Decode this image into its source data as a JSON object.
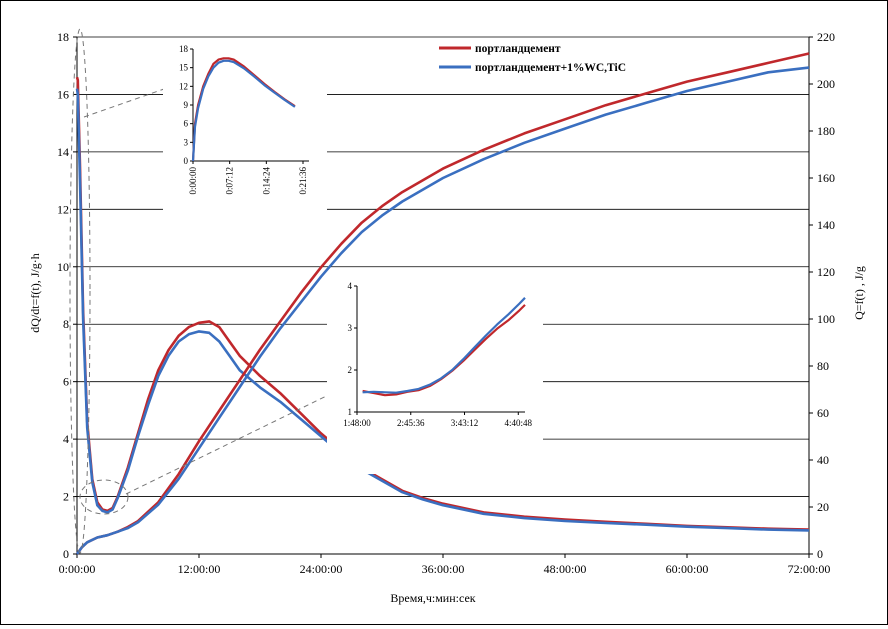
{
  "chart_data": {
    "type": "line",
    "title": "",
    "xlabel": "Время,ч:мин:сек",
    "ylabel_left": "dQ/dt=f(t), J/g·h",
    "ylabel_right": "Q=f(t) , J/g",
    "x_unit": "hours",
    "xlim": [
      0,
      72
    ],
    "x_ticks": [
      {
        "value": 0,
        "label": "0:00:00"
      },
      {
        "value": 12,
        "label": "12:00:00"
      },
      {
        "value": 24,
        "label": "24:00:00"
      },
      {
        "value": 36,
        "label": "36:00:00"
      },
      {
        "value": 48,
        "label": "48:00:00"
      },
      {
        "value": 60,
        "label": "60:00:00"
      },
      {
        "value": 72,
        "label": "72:00:00"
      }
    ],
    "ylim_left": [
      0,
      18
    ],
    "y_left_ticks": [
      "0",
      "2",
      "4",
      "6",
      "8",
      "10",
      "12",
      "14",
      "16",
      "18"
    ],
    "ylim_right": [
      0,
      220
    ],
    "y_right_ticks": [
      "0",
      "20",
      "40",
      "60",
      "80",
      "100",
      "120",
      "140",
      "160",
      "180",
      "200",
      "220"
    ],
    "gridlines": "horizontal",
    "legend_position": "top-right",
    "colors": {
      "red": "#c0282c",
      "blue": "#3a6fc0",
      "grid": "#000000",
      "dash": "#777777"
    },
    "series": [
      {
        "name": "портландцемент",
        "color": "#c0282c",
        "axis": "left",
        "kind": "rate",
        "x": [
          0,
          0.08,
          0.3,
          0.6,
          1,
          1.5,
          2,
          2.5,
          3,
          3.5,
          4,
          5,
          6,
          7,
          8,
          9,
          10,
          11,
          12,
          13,
          14,
          15,
          16,
          18,
          20,
          22,
          24,
          26,
          28,
          30,
          32,
          34,
          36,
          40,
          44,
          48,
          52,
          56,
          60,
          64,
          68,
          72
        ],
        "y": [
          16.6,
          16.5,
          13.5,
          8.5,
          4.6,
          2.6,
          1.8,
          1.55,
          1.5,
          1.6,
          2.0,
          3.0,
          4.2,
          5.4,
          6.4,
          7.1,
          7.6,
          7.9,
          8.05,
          8.1,
          7.9,
          7.4,
          6.9,
          6.2,
          5.6,
          4.9,
          4.2,
          3.6,
          3.0,
          2.6,
          2.2,
          1.95,
          1.75,
          1.45,
          1.3,
          1.2,
          1.12,
          1.05,
          0.98,
          0.93,
          0.88,
          0.85
        ]
      },
      {
        "name": "портландцемент+1%WC,TiC",
        "color": "#3a6fc0",
        "axis": "left",
        "kind": "rate",
        "x": [
          0,
          0.08,
          0.3,
          0.6,
          1,
          1.5,
          2,
          2.5,
          3,
          3.5,
          4,
          5,
          6,
          7,
          8,
          9,
          10,
          11,
          12,
          13,
          14,
          15,
          16,
          18,
          20,
          22,
          24,
          26,
          28,
          30,
          32,
          34,
          36,
          40,
          44,
          48,
          52,
          56,
          60,
          64,
          68,
          72
        ],
        "y": [
          16.2,
          16.0,
          13.0,
          8.2,
          4.4,
          2.5,
          1.7,
          1.5,
          1.45,
          1.55,
          1.95,
          2.9,
          4.1,
          5.2,
          6.2,
          6.9,
          7.4,
          7.65,
          7.75,
          7.7,
          7.4,
          6.9,
          6.4,
          5.8,
          5.3,
          4.7,
          4.1,
          3.5,
          2.95,
          2.55,
          2.15,
          1.9,
          1.7,
          1.4,
          1.25,
          1.15,
          1.08,
          1.02,
          0.95,
          0.9,
          0.85,
          0.82
        ]
      },
      {
        "name": "портландцемент",
        "color": "#c0282c",
        "axis": "right",
        "kind": "cumulative",
        "x": [
          0,
          0.5,
          1,
          2,
          3,
          4,
          5,
          6,
          8,
          10,
          12,
          14,
          16,
          18,
          20,
          22,
          24,
          26,
          28,
          30,
          32,
          36,
          40,
          44,
          48,
          52,
          56,
          60,
          64,
          68,
          72
        ],
        "y": [
          0,
          3,
          5,
          7,
          8,
          9.5,
          11.5,
          14,
          22,
          34,
          48,
          61,
          74,
          87,
          99,
          111,
          122,
          132,
          141,
          148,
          154,
          164,
          172,
          179,
          185,
          191,
          196,
          201,
          205,
          209,
          213
        ]
      },
      {
        "name": "портландцемент+1%WC,TiC",
        "color": "#3a6fc0",
        "axis": "right",
        "kind": "cumulative",
        "x": [
          0,
          0.5,
          1,
          2,
          3,
          4,
          5,
          6,
          8,
          10,
          12,
          14,
          16,
          18,
          20,
          22,
          24,
          26,
          28,
          30,
          32,
          36,
          40,
          44,
          48,
          52,
          56,
          60,
          64,
          68,
          72
        ],
        "y": [
          0,
          3,
          5,
          7,
          8,
          9.5,
          11,
          13.5,
          21,
          32,
          45,
          58,
          71,
          84,
          96,
          107,
          118,
          128,
          137,
          144,
          150,
          160,
          168,
          175,
          181,
          187,
          192,
          197,
          201,
          205,
          207
        ]
      }
    ],
    "insets": [
      {
        "id": "early",
        "x_ticks": [
          "0:00:00",
          "0:07:12",
          "0:14:24",
          "0:21:36"
        ],
        "xlim_min": [
          0,
          21.6
        ],
        "ylim": [
          0,
          18
        ],
        "y_ticks": [
          "0",
          "3",
          "6",
          "9",
          "12",
          "15",
          "18"
        ],
        "series": [
          {
            "name": "портландцемент",
            "color": "#c0282c",
            "x": [
              0,
              0.4,
              1,
              2,
              3,
              4,
              5,
              6,
              7,
              8,
              10,
              12,
              14,
              16,
              18,
              20
            ],
            "y": [
              0,
              6,
              9,
              12,
              14,
              15.6,
              16.3,
              16.5,
              16.5,
              16.3,
              15.2,
              13.8,
              12.4,
              11.1,
              9.9,
              8.8
            ]
          },
          {
            "name": "портландцемент+1%WC,TiC",
            "color": "#3a6fc0",
            "x": [
              0,
              0.4,
              1,
              2,
              3,
              4,
              5,
              6,
              7,
              8,
              10,
              12,
              14,
              16,
              18,
              20
            ],
            "y": [
              0,
              5.5,
              8.5,
              11.6,
              13.6,
              15.0,
              15.8,
              16.1,
              16.1,
              15.9,
              14.9,
              13.6,
              12.2,
              11.0,
              9.8,
              8.7
            ]
          }
        ]
      },
      {
        "id": "induction",
        "x_ticks": [
          "1:48:00",
          "2:45:36",
          "3:43:12",
          "4:40:48"
        ],
        "xlim_hours": [
          1.8,
          4.8
        ],
        "ylim": [
          1,
          4
        ],
        "y_ticks": [
          "1",
          "2",
          "3",
          "4"
        ],
        "series": [
          {
            "name": "портландцемент",
            "color": "#c0282c",
            "x": [
              1.9,
              2.1,
              2.3,
              2.5,
              2.7,
              2.9,
              3.1,
              3.3,
              3.5,
              3.7,
              3.9,
              4.1,
              4.3,
              4.5,
              4.7,
              4.8
            ],
            "y": [
              1.5,
              1.45,
              1.4,
              1.42,
              1.48,
              1.52,
              1.62,
              1.78,
              1.98,
              2.22,
              2.48,
              2.74,
              2.98,
              3.18,
              3.42,
              3.55
            ]
          },
          {
            "name": "портландцемент+1%WC,TiC",
            "color": "#3a6fc0",
            "x": [
              1.9,
              2.1,
              2.3,
              2.5,
              2.7,
              2.9,
              3.1,
              3.3,
              3.5,
              3.7,
              3.9,
              4.1,
              4.3,
              4.5,
              4.7,
              4.8
            ],
            "y": [
              1.47,
              1.48,
              1.47,
              1.46,
              1.5,
              1.55,
              1.65,
              1.8,
              2.0,
              2.26,
              2.54,
              2.82,
              3.08,
              3.32,
              3.58,
              3.72
            ]
          }
        ]
      }
    ]
  }
}
